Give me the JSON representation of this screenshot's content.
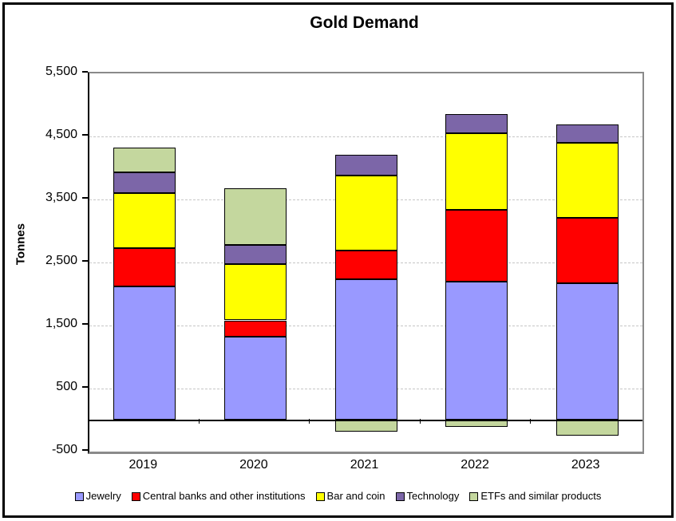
{
  "chart_data": {
    "type": "bar",
    "stacked": true,
    "title": "Gold Demand",
    "ylabel": "Tonnes",
    "xlabel": "",
    "categories": [
      "2019",
      "2020",
      "2021",
      "2022",
      "2023"
    ],
    "series": [
      {
        "name": "Jewelry",
        "color": "#9999FF",
        "values": [
          2123,
          1327,
          2230,
          2195,
          2168
        ]
      },
      {
        "name": "Central banks and other institutions",
        "color": "#FF0000",
        "values": [
          605,
          255,
          463,
          1136,
          1037
        ]
      },
      {
        "name": "Bar and coin",
        "color": "#FFFF00",
        "values": [
          871,
          896,
          1191,
          1217,
          1190
        ]
      },
      {
        "name": "Technology",
        "color": "#7C66A8",
        "values": [
          326,
          302,
          330,
          309,
          298
        ]
      },
      {
        "name": "ETFs and similar products",
        "color": "#C4D79E",
        "values": [
          401,
          892,
          -189,
          -110,
          -244
        ]
      }
    ],
    "ylim": [
      -500,
      5500
    ],
    "yticks": [
      {
        "label": "5,500",
        "value": 5500
      },
      {
        "label": "4,500",
        "value": 4500
      },
      {
        "label": "3,500",
        "value": 3500
      },
      {
        "label": "2,500",
        "value": 2500
      },
      {
        "label": "1,500",
        "value": 1500
      },
      {
        "label": "500",
        "value": 500
      },
      {
        "label": "-500",
        "value": -500
      }
    ],
    "gridline_values": [
      4500,
      3500,
      2500,
      1500,
      500
    ],
    "grid_style": "dashed-horizontal",
    "legend_position": "bottom",
    "colors": {
      "gridline": "#C6C6C6",
      "plot_border": "#8A8A8A",
      "axis_line": "#000000",
      "segment_border": "#000000",
      "background": "#FFFFFF",
      "frame_border": "#000000"
    }
  }
}
